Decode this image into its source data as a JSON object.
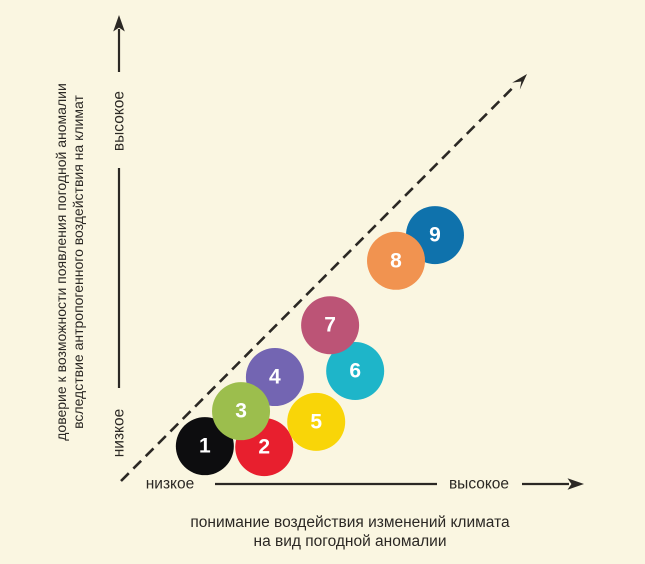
{
  "figure": {
    "background_color": "#faf6e1",
    "ink_color": "#2b2824"
  },
  "chart_data": {
    "type": "scatter",
    "title": "",
    "legend": "none",
    "grid": "off",
    "x_axis": {
      "caption_line1": "понимание воздействия изменений климата",
      "caption_line2": "на вид погодной аномалии",
      "low_label": "низкое",
      "high_label": "высокое",
      "range": [
        0,
        100
      ],
      "ticks": []
    },
    "y_axis": {
      "caption_line1": "доверие к возможности появления погодной аномалии",
      "caption_line2": "вследствие антропогенного воздействия на климат",
      "low_label": "низкое",
      "high_label": "высокое",
      "range": [
        0,
        100
      ],
      "ticks": []
    },
    "reference_line": {
      "style": "dashed-diagonal-arrow",
      "from": [
        0,
        0
      ],
      "to": [
        87,
        87
      ]
    },
    "number_color": "#ffffff",
    "points": [
      {
        "id": "1",
        "x": 18.5,
        "y": 8.1,
        "r": 29,
        "color": "#0d0d0f",
        "z": 1
      },
      {
        "id": "2",
        "x": 31.3,
        "y": 7.9,
        "r": 29,
        "color": "#e81f2e",
        "z": 2
      },
      {
        "id": "3",
        "x": 26.3,
        "y": 15.6,
        "r": 29,
        "color": "#9cbe4d",
        "z": 4
      },
      {
        "id": "4",
        "x": 33.6,
        "y": 22.9,
        "r": 29,
        "color": "#7365b2",
        "z": 3
      },
      {
        "id": "5",
        "x": 42.5,
        "y": 13.3,
        "r": 29,
        "color": "#f9d508",
        "z": 5
      },
      {
        "id": "6",
        "x": 50.9,
        "y": 24.2,
        "r": 29,
        "color": "#1eb5c9",
        "z": 6
      },
      {
        "id": "7",
        "x": 45.5,
        "y": 34.0,
        "r": 29,
        "color": "#bc5476",
        "z": 7
      },
      {
        "id": "8",
        "x": 59.7,
        "y": 47.8,
        "r": 29,
        "color": "#f19350",
        "z": 9
      },
      {
        "id": "9",
        "x": 68.1,
        "y": 53.3,
        "r": 29,
        "color": "#0f72ac",
        "z": 8
      }
    ]
  }
}
